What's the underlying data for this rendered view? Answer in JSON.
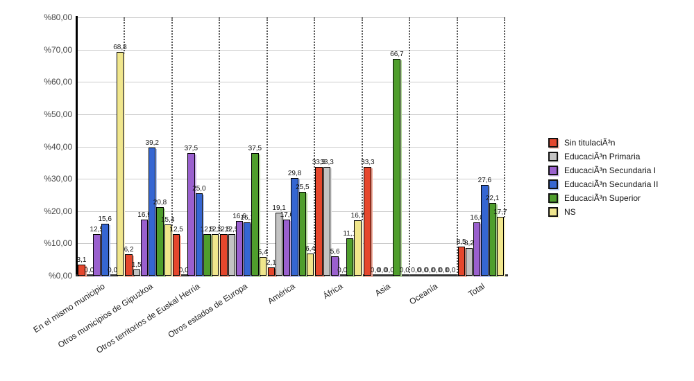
{
  "chart_data": {
    "type": "bar",
    "title": "",
    "xlabel": "",
    "ylabel": "",
    "ylim": [
      0,
      80
    ],
    "grid": true,
    "legend_position": "right",
    "decimal_separator": ",",
    "ytick_labels": [
      "%80,00",
      "%70,00",
      "%60,00",
      "%50,00",
      "%40,00",
      "%30,00",
      "%20,00",
      "%10,00",
      "%0,00"
    ],
    "categories": [
      "En el mismo municipio",
      "Otros municipios de Gipuzkoa",
      "Otros territorios de Euskal Herria",
      "Otros estados de Europa",
      "América",
      "África",
      "Asia",
      "Oceanía",
      "Total"
    ],
    "series": [
      {
        "name": "Sin titulaciÃ³n",
        "color": "#E5472D",
        "shadow_color": "#F5AC9B",
        "values": [
          3.1,
          6.2,
          12.5,
          12.5,
          2.1,
          33.3,
          33.3,
          0.0,
          8.5
        ]
      },
      {
        "name": "EducaciÃ³n Primaria",
        "color": "#C3C3C3",
        "shadow_color": "#E2E2E2",
        "values": [
          0.0,
          1.5,
          0.0,
          12.5,
          19.1,
          33.3,
          0.0,
          0.0,
          8.2
        ]
      },
      {
        "name": "EducaciÃ³n Secundaria I",
        "color": "#9A60CE",
        "shadow_color": "#CEB3EA",
        "values": [
          12.5,
          16.9,
          37.5,
          16.6,
          17.0,
          5.6,
          0.0,
          0.0,
          16.0
        ]
      },
      {
        "name": "EducaciÃ³n Secundaria II",
        "color": "#3566D2",
        "shadow_color": "#AEC2EF",
        "values": [
          15.6,
          39.2,
          25.0,
          16.1,
          29.8,
          0.0,
          0.0,
          0.0,
          27.6
        ]
      },
      {
        "name": "EducaciÃ³n Superior",
        "color": "#4F9E2C",
        "shadow_color": "#B2D79B",
        "values": [
          0.0,
          20.8,
          12.5,
          37.5,
          25.5,
          11.1,
          66.7,
          0.0,
          22.1
        ]
      },
      {
        "name": "NS",
        "color": "#F0E68C",
        "shadow_color": "#F8F1C6",
        "values": [
          68.8,
          15.4,
          12.5,
          5.4,
          6.4,
          16.7,
          0.0,
          0.0,
          17.7
        ]
      }
    ]
  }
}
